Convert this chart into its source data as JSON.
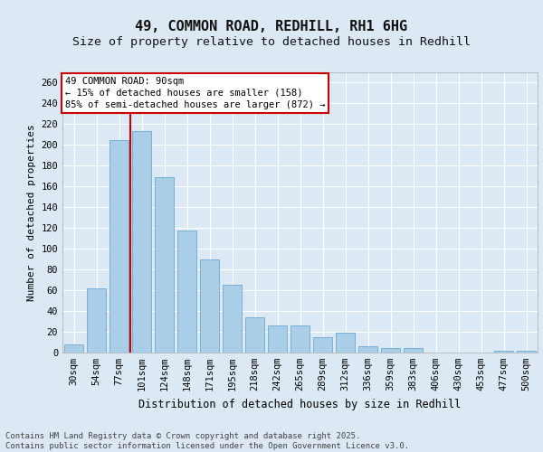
{
  "title1": "49, COMMON ROAD, REDHILL, RH1 6HG",
  "title2": "Size of property relative to detached houses in Redhill",
  "xlabel": "Distribution of detached houses by size in Redhill",
  "ylabel": "Number of detached properties",
  "categories": [
    "30sqm",
    "54sqm",
    "77sqm",
    "101sqm",
    "124sqm",
    "148sqm",
    "171sqm",
    "195sqm",
    "218sqm",
    "242sqm",
    "265sqm",
    "289sqm",
    "312sqm",
    "336sqm",
    "359sqm",
    "383sqm",
    "406sqm",
    "430sqm",
    "453sqm",
    "477sqm",
    "500sqm"
  ],
  "values": [
    8,
    62,
    205,
    213,
    169,
    118,
    90,
    65,
    34,
    26,
    26,
    15,
    19,
    6,
    4,
    4,
    0,
    0,
    0,
    2,
    2
  ],
  "bar_color": "#aacde8",
  "bar_edge_color": "#6aaad4",
  "vline_color": "#cc0000",
  "vline_x": 2.5,
  "annotation_lines": [
    "49 COMMON ROAD: 90sqm",
    "← 15% of detached houses are smaller (158)",
    "85% of semi-detached houses are larger (872) →"
  ],
  "annotation_box_facecolor": "#ffffff",
  "annotation_box_edgecolor": "#cc0000",
  "ylim": [
    0,
    270
  ],
  "yticks": [
    0,
    20,
    40,
    60,
    80,
    100,
    120,
    140,
    160,
    180,
    200,
    220,
    240,
    260
  ],
  "bg_color": "#dce8f4",
  "grid_color": "#ffffff",
  "fig_facecolor": "#dce8f4",
  "title1_fontsize": 11,
  "title2_fontsize": 9.5,
  "xlabel_fontsize": 8.5,
  "ylabel_fontsize": 8,
  "tick_fontsize": 7.5,
  "annotation_fontsize": 7.5,
  "footer_fontsize": 6.5,
  "footer": "Contains HM Land Registry data © Crown copyright and database right 2025.\nContains public sector information licensed under the Open Government Licence v3.0."
}
